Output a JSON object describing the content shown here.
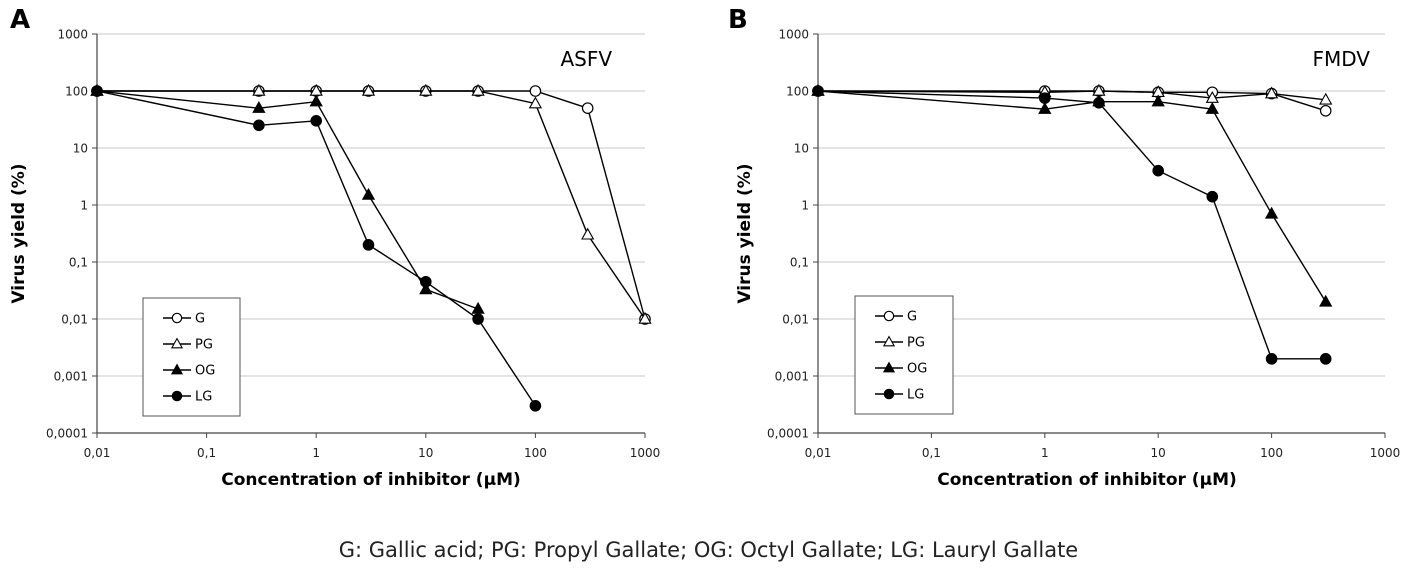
{
  "caption": "G: Gallic acid; PG: Propyl Gallate; OG: Octyl Gallate; LG: Lauryl Gallate",
  "chart_data": [
    {
      "type": "line",
      "panel_label": "A",
      "title": "ASFV",
      "xlabel": "Concentration of inhibitor (μM)",
      "ylabel": "Virus yield (%)",
      "xscale": "log",
      "yscale": "log",
      "xlim": [
        0.01,
        1000
      ],
      "ylim": [
        0.0001,
        1000
      ],
      "x_ticks": [
        "0,01",
        "0,1",
        "1",
        "10",
        "100",
        "1000"
      ],
      "y_ticks": [
        "0,0001",
        "0,001",
        "0,01",
        "0,1",
        "1",
        "10",
        "100",
        "1000"
      ],
      "grid": true,
      "legend_position": "bottom-left",
      "series": [
        {
          "name": "G",
          "marker": "circle-open",
          "points": [
            [
              0.01,
              100
            ],
            [
              0.3,
              100
            ],
            [
              1,
              100
            ],
            [
              3,
              100
            ],
            [
              10,
              100
            ],
            [
              30,
              100
            ],
            [
              100,
              100
            ],
            [
              300,
              50
            ],
            [
              1000,
              0.01
            ]
          ]
        },
        {
          "name": "PG",
          "marker": "triangle-open",
          "points": [
            [
              0.01,
              100
            ],
            [
              0.3,
              100
            ],
            [
              1,
              100
            ],
            [
              3,
              100
            ],
            [
              10,
              100
            ],
            [
              30,
              100
            ],
            [
              100,
              60
            ],
            [
              300,
              0.3
            ],
            [
              1000,
              0.01
            ]
          ]
        },
        {
          "name": "OG",
          "marker": "triangle-filled",
          "points": [
            [
              0.01,
              100
            ],
            [
              0.3,
              50
            ],
            [
              1,
              65
            ],
            [
              3,
              1.5
            ],
            [
              10,
              0.033
            ],
            [
              30,
              0.015
            ]
          ]
        },
        {
          "name": "LG",
          "marker": "circle-filled",
          "points": [
            [
              0.01,
              100
            ],
            [
              0.3,
              25
            ],
            [
              1,
              30
            ],
            [
              3,
              0.2
            ],
            [
              10,
              0.045
            ],
            [
              30,
              0.01
            ],
            [
              100,
              0.0003
            ]
          ]
        }
      ]
    },
    {
      "type": "line",
      "panel_label": "B",
      "title": "FMDV",
      "xlabel": "Concentration of inhibitor (μM)",
      "ylabel": "Virus yield (%)",
      "xscale": "log",
      "yscale": "log",
      "xlim": [
        0.01,
        1000
      ],
      "ylim": [
        0.0001,
        1000
      ],
      "x_ticks": [
        "0,01",
        "0,1",
        "1",
        "10",
        "100",
        "1000"
      ],
      "y_ticks": [
        "0,0001",
        "0,001",
        "0,01",
        "0,1",
        "1",
        "10",
        "100",
        "1000"
      ],
      "grid": true,
      "legend_position": "bottom-left",
      "series": [
        {
          "name": "G",
          "marker": "circle-open",
          "points": [
            [
              0.01,
              100
            ],
            [
              1,
              100
            ],
            [
              3,
              100
            ],
            [
              10,
              95
            ],
            [
              30,
              95
            ],
            [
              100,
              90
            ],
            [
              300,
              45
            ]
          ]
        },
        {
          "name": "PG",
          "marker": "triangle-open",
          "points": [
            [
              0.01,
              100
            ],
            [
              1,
              95
            ],
            [
              3,
              100
            ],
            [
              10,
              95
            ],
            [
              30,
              75
            ],
            [
              100,
              90
            ],
            [
              300,
              70
            ]
          ]
        },
        {
          "name": "OG",
          "marker": "triangle-filled",
          "points": [
            [
              0.01,
              100
            ],
            [
              1,
              48
            ],
            [
              3,
              65
            ],
            [
              10,
              65
            ],
            [
              30,
              48
            ],
            [
              100,
              0.7
            ],
            [
              300,
              0.02
            ]
          ]
        },
        {
          "name": "LG",
          "marker": "circle-filled",
          "points": [
            [
              0.01,
              100
            ],
            [
              1,
              75
            ],
            [
              3,
              62
            ],
            [
              10,
              4
            ],
            [
              30,
              1.4
            ],
            [
              100,
              0.002
            ],
            [
              300,
              0.002
            ]
          ]
        }
      ]
    }
  ]
}
